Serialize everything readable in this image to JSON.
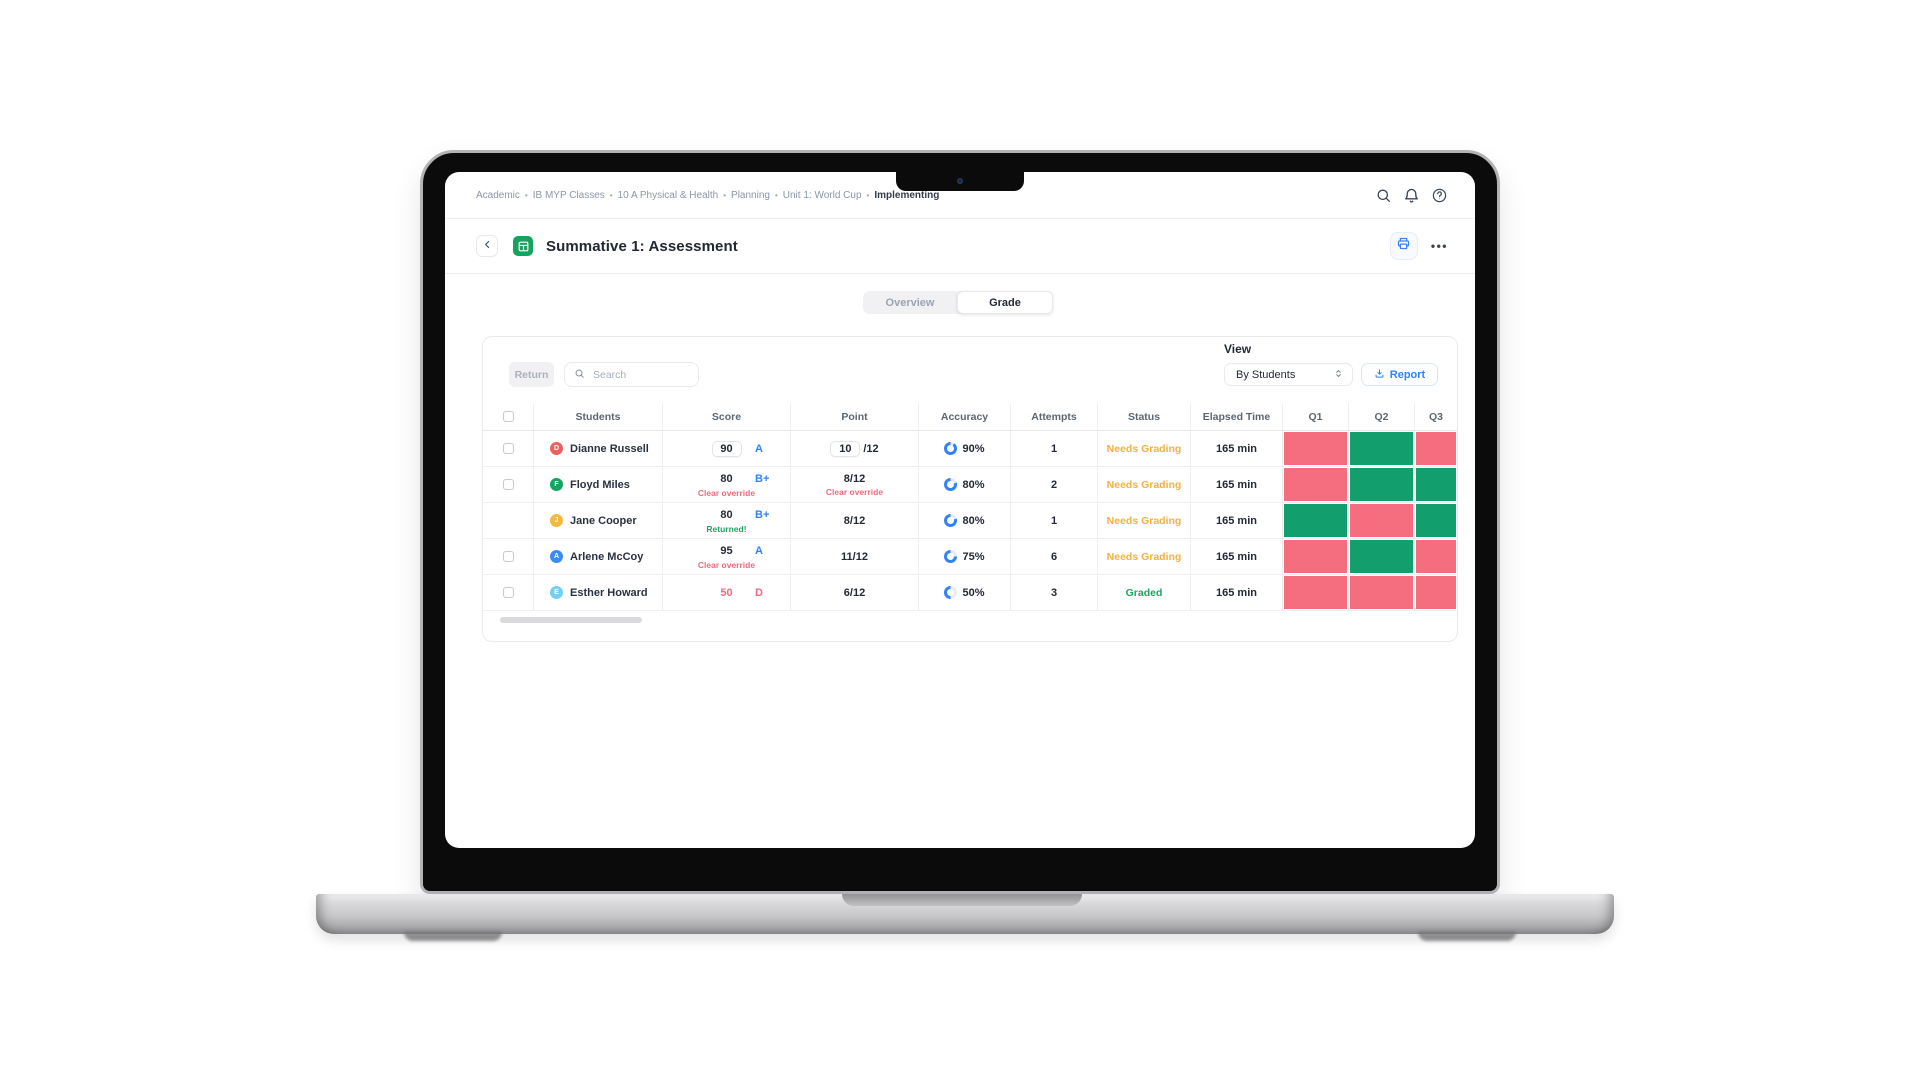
{
  "colors": {
    "blue": "#3182F6",
    "orange": "#F2B23C",
    "green": "#1FA361",
    "red": "#F16A7E",
    "q_green": "#129E6D",
    "q_red": "#F56E80"
  },
  "breadcrumb": {
    "separator": "•",
    "items": [
      "Academic",
      "IB MYP Classes",
      "10 A Physical & Health",
      "Planning",
      "Unit 1: World Cup",
      "Implementing"
    ]
  },
  "topbar": {
    "icons": [
      "search",
      "notifications",
      "help"
    ]
  },
  "header": {
    "title": "Summative 1: Assessment",
    "icons": [
      "back",
      "assessment-module",
      "print",
      "more"
    ]
  },
  "tabs": [
    {
      "label": "Overview",
      "active": false
    },
    {
      "label": "Grade",
      "active": true
    }
  ],
  "toolbar": {
    "return_label": "Return",
    "search_placeholder": "Search",
    "view_label": "View",
    "view_value": "By Students",
    "report_label": "Report"
  },
  "table": {
    "columns": [
      "Students",
      "Score",
      "Point",
      "Accuracy",
      "Attempts",
      "Status",
      "Elapsed Time",
      "Q1",
      "Q2",
      "Q3"
    ],
    "rows": [
      {
        "name": "Dianne Russell",
        "initial": "D",
        "avatar_color": "#EC6262",
        "checkbox": true,
        "score": {
          "value": "90",
          "editable": true,
          "grade": "A",
          "grade_color": "blue"
        },
        "point": {
          "value": "10",
          "suffix": "/12",
          "editable": true
        },
        "accuracy": 90,
        "attempts": "1",
        "status": {
          "label": "Needs Grading",
          "color": "orange"
        },
        "elapsed": "165 min",
        "questions": [
          "red",
          "green",
          "red"
        ]
      },
      {
        "name": "Floyd Miles",
        "initial": "F",
        "avatar_color": "#17A35F",
        "checkbox": true,
        "score": {
          "value": "80",
          "grade": "B+",
          "grade_color": "blue",
          "sub": "Clear override",
          "sub_color": "red"
        },
        "point": {
          "value": "8/12",
          "sub": "Clear override",
          "sub_color": "red"
        },
        "accuracy": 80,
        "attempts": "2",
        "status": {
          "label": "Needs Grading",
          "color": "orange"
        },
        "elapsed": "165 min",
        "questions": [
          "red",
          "green",
          "green"
        ]
      },
      {
        "name": "Jane Cooper",
        "initial": "J",
        "avatar_color": "#F5B840",
        "checkbox": false,
        "score": {
          "value": "80",
          "grade": "B+",
          "grade_color": "blue",
          "sub": "Returned!",
          "sub_color": "green"
        },
        "point": {
          "value": "8/12"
        },
        "accuracy": 80,
        "attempts": "1",
        "status": {
          "label": "Needs Grading",
          "color": "orange"
        },
        "elapsed": "165 min",
        "questions": [
          "green",
          "red",
          "green"
        ]
      },
      {
        "name": "Arlene McCoy",
        "initial": "A",
        "avatar_color": "#3D8BF2",
        "checkbox": true,
        "score": {
          "value": "95",
          "grade": "A",
          "grade_color": "blue",
          "sub": "Clear override",
          "sub_color": "red"
        },
        "point": {
          "value": "11/12"
        },
        "accuracy": 75,
        "attempts": "6",
        "status": {
          "label": "Needs Grading",
          "color": "orange"
        },
        "elapsed": "165 min",
        "questions": [
          "red",
          "green",
          "red"
        ]
      },
      {
        "name": "Esther Howard",
        "initial": "E",
        "avatar_color": "#74D0F2",
        "checkbox": true,
        "score": {
          "value": "50",
          "value_color": "red",
          "grade": "D",
          "grade_color": "red"
        },
        "point": {
          "value": "6/12"
        },
        "accuracy": 50,
        "attempts": "3",
        "status": {
          "label": "Graded",
          "color": "green"
        },
        "elapsed": "165 min",
        "questions": [
          "red",
          "red",
          "red"
        ]
      }
    ]
  }
}
